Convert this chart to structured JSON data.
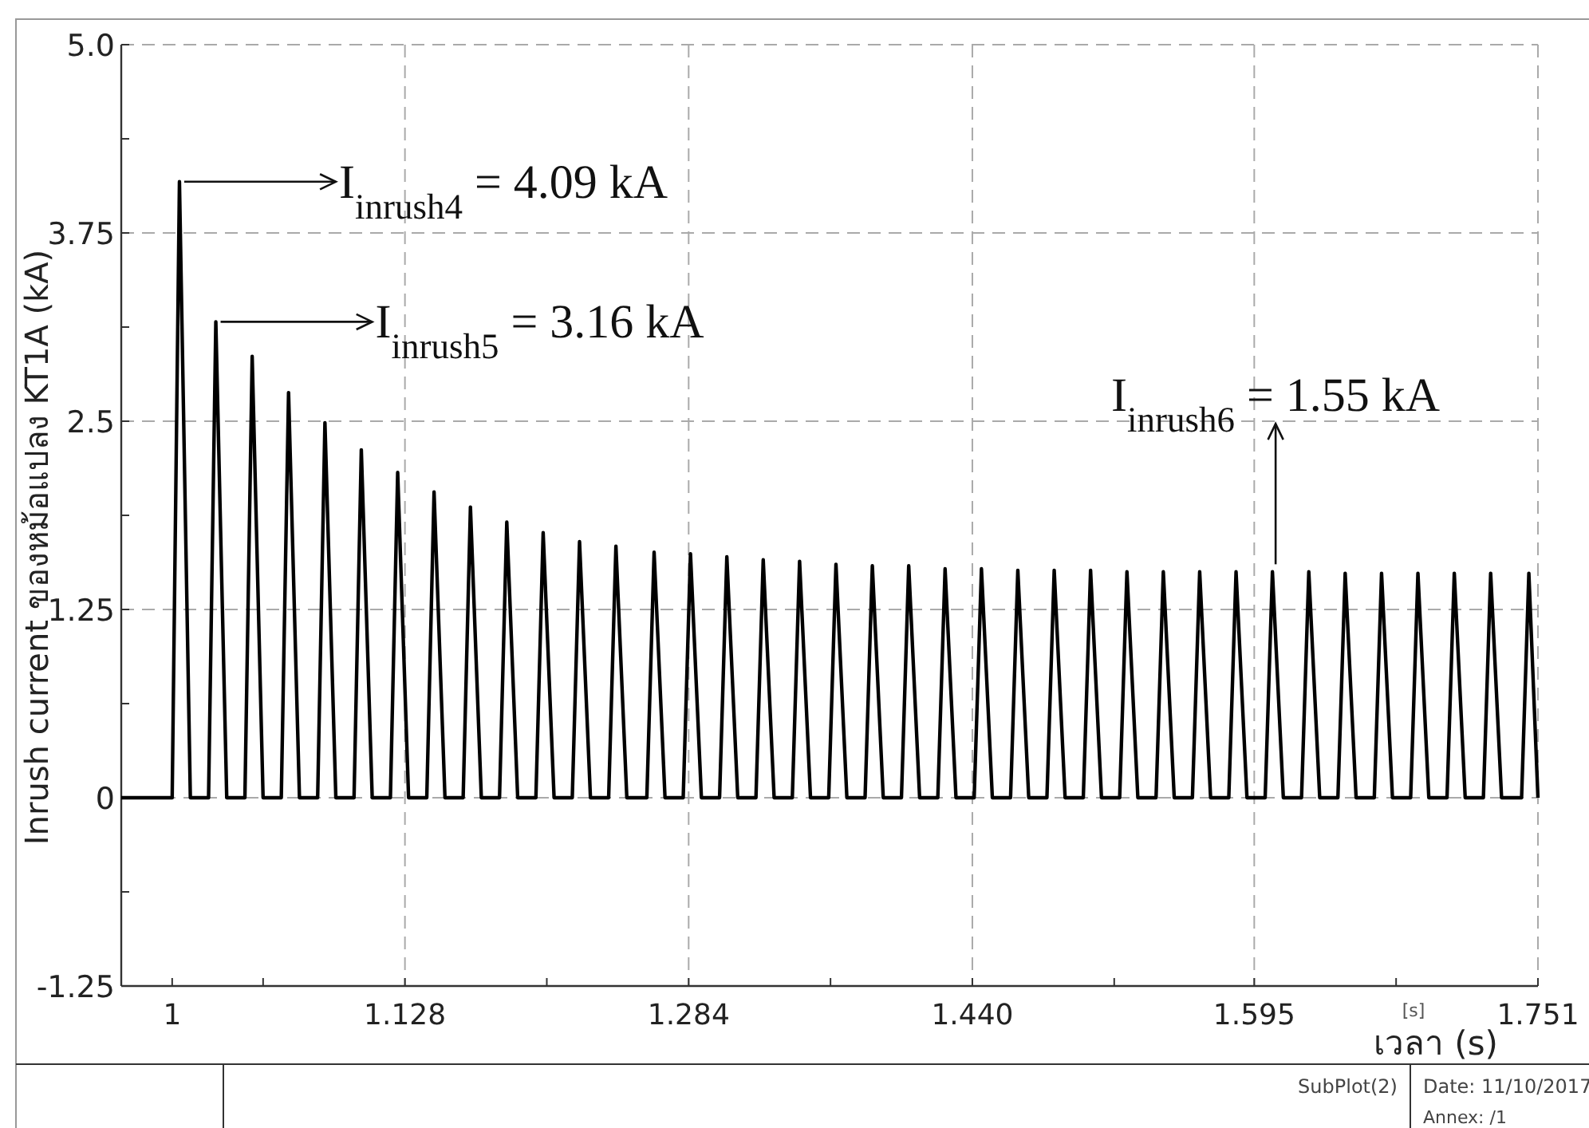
{
  "chart_data": {
    "type": "line",
    "ylabel": "Inrush current ของหม้อแปลง KT1A (kA)",
    "xlabel": "เวลา (s)",
    "xlim": [
      0.972,
      1.751
    ],
    "ylim": [
      -1.25,
      5.0
    ],
    "xticks": [
      {
        "value": 1,
        "label": "1"
      },
      {
        "value": 1.05,
        "label": null
      },
      {
        "value": 1.128,
        "label": "1.128"
      },
      {
        "value": 1.206,
        "label": null
      },
      {
        "value": 1.284,
        "label": "1.284"
      },
      {
        "value": 1.362,
        "label": null
      },
      {
        "value": 1.44,
        "label": "1.440"
      },
      {
        "value": 1.518,
        "label": null
      },
      {
        "value": 1.595,
        "label": "1.595"
      },
      {
        "value": 1.673,
        "label": null
      },
      {
        "value": 1.751,
        "label": "1.751"
      }
    ],
    "yticks": [
      {
        "value": -1.25,
        "label": "-1.25"
      },
      {
        "value": -0.625,
        "label": null
      },
      0,
      {
        "value": 0.625,
        "label": null
      },
      1.25,
      {
        "value": 1.875,
        "label": null
      },
      2.5,
      {
        "value": 3.125,
        "label": null
      },
      3.75,
      {
        "value": 4.375,
        "label": null
      },
      {
        "value": 5.0,
        "label": "5.0"
      }
    ],
    "grid": true,
    "color": "#000000",
    "x": [
      0.972,
      1.0,
      1.004,
      1.01,
      1.02,
      1.024,
      1.03,
      1.04,
      1.044,
      1.05,
      1.06,
      1.064,
      1.07,
      1.08,
      1.084,
      1.09,
      1.1,
      1.104,
      1.11,
      1.12,
      1.124,
      1.13,
      1.14,
      1.144,
      1.15,
      1.16,
      1.164,
      1.17,
      1.18,
      1.184,
      1.19,
      1.2,
      1.204,
      1.21,
      1.22,
      1.224,
      1.23,
      1.24,
      1.244,
      1.25,
      1.261,
      1.265,
      1.271,
      1.281,
      1.285,
      1.291,
      1.301,
      1.305,
      1.311,
      1.321,
      1.325,
      1.331,
      1.341,
      1.345,
      1.351,
      1.361,
      1.365,
      1.371,
      1.381,
      1.385,
      1.391,
      1.401,
      1.405,
      1.411,
      1.421,
      1.425,
      1.431,
      1.441,
      1.445,
      1.451,
      1.461,
      1.465,
      1.471,
      1.481,
      1.485,
      1.491,
      1.501,
      1.505,
      1.511,
      1.521,
      1.525,
      1.531,
      1.541,
      1.545,
      1.551,
      1.561,
      1.565,
      1.571,
      1.581,
      1.585,
      1.591,
      1.601,
      1.605,
      1.611,
      1.621,
      1.625,
      1.631,
      1.641,
      1.645,
      1.651,
      1.661,
      1.665,
      1.671,
      1.681,
      1.685,
      1.691,
      1.701,
      1.705,
      1.711,
      1.721,
      1.725,
      1.731,
      1.742,
      1.746,
      1.751
    ],
    "values": [
      0,
      0,
      4.09,
      0,
      0,
      3.16,
      0,
      0,
      2.93,
      0,
      0,
      2.69,
      0,
      0,
      2.49,
      0,
      0,
      2.31,
      0,
      0,
      2.16,
      0,
      0,
      2.03,
      0,
      0,
      1.93,
      0,
      0,
      1.83,
      0,
      0,
      1.76,
      0,
      0,
      1.7,
      0,
      0,
      1.67,
      0,
      0,
      1.63,
      0,
      0,
      1.62,
      0,
      0,
      1.6,
      0,
      0,
      1.58,
      0,
      0,
      1.57,
      0,
      0,
      1.55,
      0,
      0,
      1.54,
      0,
      0,
      1.54,
      0,
      0,
      1.52,
      0,
      0,
      1.52,
      0,
      0,
      1.51,
      0,
      0,
      1.51,
      0,
      0,
      1.51,
      0,
      0,
      1.5,
      0,
      0,
      1.5,
      0,
      0,
      1.5,
      0,
      0,
      1.5,
      0,
      0,
      1.5,
      0,
      0,
      1.5,
      0,
      0,
      1.49,
      0,
      0,
      1.49,
      0,
      0,
      1.49,
      0,
      0,
      1.49,
      0,
      0,
      1.49,
      0,
      0,
      1.49,
      0
    ],
    "annotations": [
      {
        "text": "I$_{inrush4}$ = 4.09 kA",
        "x": 1.004,
        "y": 4.09
      },
      {
        "text": "I$_{inrush5}$ = 3.16 kA",
        "x": 1.024,
        "y": 3.16
      },
      {
        "text": "I$_{inrush6}$ = 1.55 kA",
        "x": 1.605,
        "y": 1.55
      },
      "[s]",
      "SubPlot(2)",
      "Date: 11/10/2017",
      "Annex:  /1"
    ]
  }
}
